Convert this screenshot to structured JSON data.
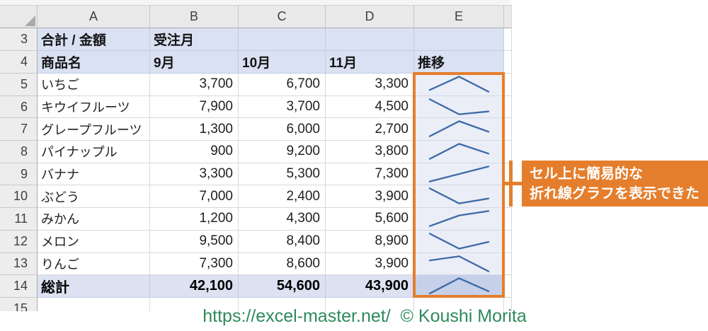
{
  "app": {
    "kind": "excel-pivot-table-with-sparklines"
  },
  "colors": {
    "header_fill": "#d9e1f2",
    "total_fill": "#dce2f2",
    "spark_fill": "#ebeef7",
    "spark_total_fill": "#c6d0e9",
    "sparkline_stroke": "#3e6ba8",
    "accent_orange": "#e57e2c",
    "footer_green": "#2e8a5c"
  },
  "grid": {
    "column_letters": [
      "A",
      "B",
      "C",
      "D",
      "E"
    ],
    "pivot_header": {
      "title": "合計 / 金額",
      "col_field": "受注月",
      "row_field": "商品名",
      "months": [
        "9月",
        "10月",
        "11月"
      ],
      "trend_label": "推移"
    },
    "products": [
      {
        "name": "いちご",
        "row": "5",
        "values": [
          3700,
          6700,
          3300
        ],
        "display": [
          "3,700",
          "6,700",
          "3,300"
        ]
      },
      {
        "name": "キウイフルーツ",
        "row": "6",
        "values": [
          7900,
          3700,
          4500
        ],
        "display": [
          "7,900",
          "3,700",
          "4,500"
        ]
      },
      {
        "name": "グレープフルーツ",
        "row": "7",
        "values": [
          1300,
          6000,
          2700
        ],
        "display": [
          "1,300",
          "6,000",
          "2,700"
        ]
      },
      {
        "name": "パイナップル",
        "row": "8",
        "values": [
          900,
          9200,
          3800
        ],
        "display": [
          "900",
          "9,200",
          "3,800"
        ]
      },
      {
        "name": "バナナ",
        "row": "9",
        "values": [
          3300,
          5300,
          7300
        ],
        "display": [
          "3,300",
          "5,300",
          "7,300"
        ]
      },
      {
        "name": "ぶどう",
        "row": "10",
        "values": [
          7000,
          2400,
          3900
        ],
        "display": [
          "7,000",
          "2,400",
          "3,900"
        ]
      },
      {
        "name": "みかん",
        "row": "11",
        "values": [
          1200,
          4300,
          5600
        ],
        "display": [
          "1,200",
          "4,300",
          "5,600"
        ]
      },
      {
        "name": "メロン",
        "row": "12",
        "values": [
          9500,
          8400,
          8900
        ],
        "display": [
          "9,500",
          "8,400",
          "8,900"
        ]
      },
      {
        "name": "りんご",
        "row": "13",
        "values": [
          7300,
          8600,
          3900
        ],
        "display": [
          "7,300",
          "8,600",
          "3,900"
        ]
      }
    ],
    "total": {
      "name": "総計",
      "row": "14",
      "values": [
        42100,
        54600,
        43900
      ],
      "display": [
        "42,100",
        "54,600",
        "43,900"
      ]
    },
    "partial_row": "15",
    "header_rows": [
      "3",
      "4"
    ]
  },
  "chart_data": {
    "type": "line",
    "categories": [
      "9月",
      "10月",
      "11月"
    ],
    "series": [
      {
        "name": "いちご",
        "values": [
          3700,
          6700,
          3300
        ]
      },
      {
        "name": "キウイフルーツ",
        "values": [
          7900,
          3700,
          4500
        ]
      },
      {
        "name": "グレープフルーツ",
        "values": [
          1300,
          6000,
          2700
        ]
      },
      {
        "name": "パイナップル",
        "values": [
          900,
          9200,
          3800
        ]
      },
      {
        "name": "バナナ",
        "values": [
          3300,
          5300,
          7300
        ]
      },
      {
        "name": "ぶどう",
        "values": [
          7000,
          2400,
          3900
        ]
      },
      {
        "name": "みかん",
        "values": [
          1200,
          4300,
          5600
        ]
      },
      {
        "name": "メロン",
        "values": [
          9500,
          8400,
          8900
        ]
      },
      {
        "name": "りんご",
        "values": [
          7300,
          8600,
          3900
        ]
      },
      {
        "name": "総計",
        "values": [
          42100,
          54600,
          43900
        ]
      }
    ],
    "title": "推移",
    "note": "cell sparklines, each normalized to its own row min/max"
  },
  "annotation": {
    "line1": "セル上に簡易的な",
    "line2": "折れ線グラフを表示できた"
  },
  "footer": {
    "credit": "https://excel-master.net/  © Koushi Morita"
  }
}
